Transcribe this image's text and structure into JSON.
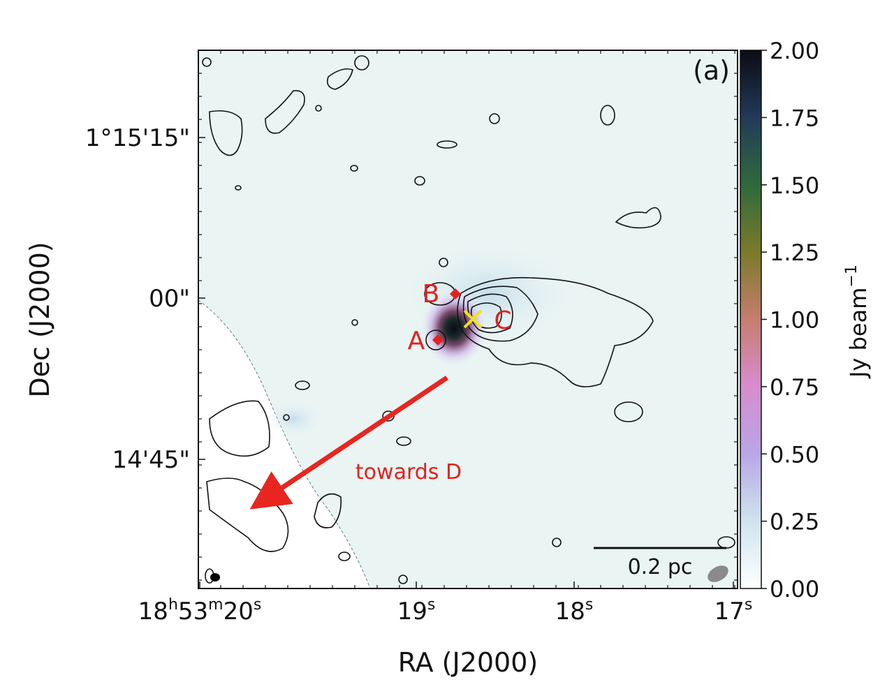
{
  "chart_data": {
    "type": "heatmap",
    "title": "",
    "panel_label": "(a)",
    "xlabel": "RA (J2000)",
    "ylabel": "Dec (J2000)",
    "x_ticks": [
      {
        "h": "18",
        "m": "53",
        "s": "20",
        "label": "18h53m20s"
      },
      {
        "s": "19",
        "label": "19s"
      },
      {
        "s": "18",
        "label": "18s"
      },
      {
        "s": "17",
        "label": "17s"
      }
    ],
    "y_ticks": [
      "1°15'15\"",
      "00\"",
      "14'45\""
    ],
    "colorbar": {
      "label": "Jy beam",
      "label_exponent": "−1",
      "range": [
        0.0,
        2.0
      ],
      "ticks": [
        "0.00",
        "0.25",
        "0.50",
        "0.75",
        "1.00",
        "1.25",
        "1.50",
        "1.75",
        "2.00"
      ],
      "colors": [
        "#ffffff",
        "#cfe4ef",
        "#b8a6e6",
        "#d68ccf",
        "#c77d6e",
        "#7a7a2a",
        "#2f6a3c",
        "#223a5a",
        "#0b0b14"
      ]
    },
    "sources": [
      {
        "name": "A"
      },
      {
        "name": "B"
      },
      {
        "name": "C"
      }
    ],
    "annotation": "towards D",
    "scale_bar": "0.2 pc",
    "colors": {
      "marker": "#e0231f",
      "cross": "#f2e11a",
      "arrow": "#e8261f"
    }
  }
}
